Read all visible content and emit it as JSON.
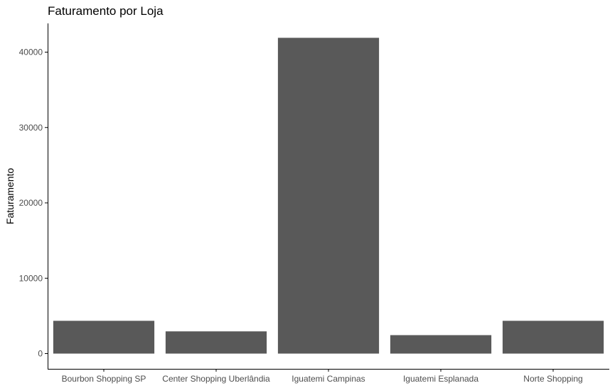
{
  "chart_data": {
    "type": "bar",
    "title": "Faturamento por Loja",
    "xlabel": "",
    "ylabel": "Faturamento",
    "categories": [
      "Bourbon Shopping SP",
      "Center Shopping Uberlândia",
      "Iguatemi Campinas",
      "Iguatemi Esplanada",
      "Norte Shopping"
    ],
    "values": [
      4350,
      2950,
      41900,
      2450,
      4350
    ],
    "ylim": [
      0,
      44000
    ],
    "yticks": [
      0,
      10000,
      20000,
      30000,
      40000
    ],
    "ytick_labels": [
      "0",
      "10000",
      "20000",
      "30000",
      "40000"
    ],
    "bar_color": "#595959",
    "axis_color": "#000000",
    "tick_label_color": "#4d4d4d",
    "grid": false,
    "legend": "none"
  }
}
